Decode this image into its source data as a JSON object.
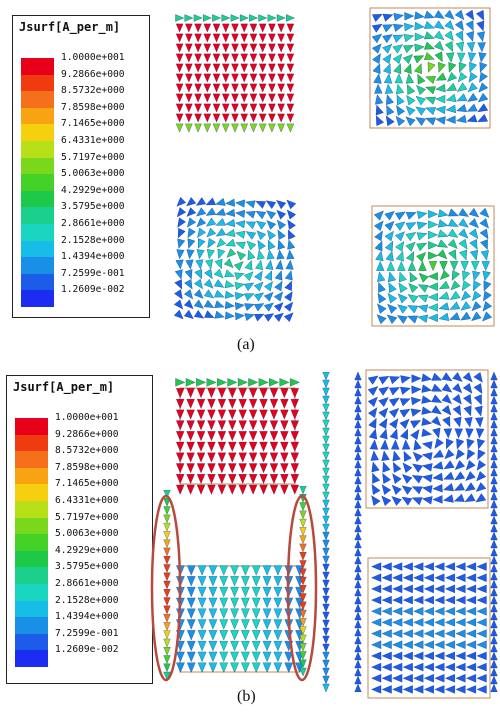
{
  "legend_a": {
    "title": "Jsurf[A_per_m]",
    "ticks": [
      "1.0000e+001",
      "9.2866e+000",
      "8.5732e+000",
      "7.8598e+000",
      "7.1465e+000",
      "6.4331e+000",
      "5.7197e+000",
      "5.0063e+000",
      "4.2929e+000",
      "3.5795e+000",
      "2.8661e+000",
      "2.1528e+000",
      "1.4394e+000",
      "7.2599e-001",
      "1.2609e-002"
    ]
  },
  "legend_b": {
    "title": "Jsurf[A_per_m]",
    "ticks": [
      "1.0000e+001",
      "9.2866e+000",
      "8.5732e+000",
      "7.8598e+000",
      "7.1465e+000",
      "6.4331e+000",
      "5.7197e+000",
      "5.0063e+000",
      "4.2929e+000",
      "3.5795e+000",
      "2.8661e+000",
      "2.1528e+000",
      "1.4394e+000",
      "7.2599e-001",
      "1.2609e-002"
    ]
  },
  "colormap": [
    "#e8001a",
    "#f03a10",
    "#f5701a",
    "#f8a412",
    "#f6d00f",
    "#b8e018",
    "#7ad81c",
    "#44d226",
    "#1ec94a",
    "#1ad08c",
    "#18d6c0",
    "#17bde6",
    "#1a8fe8",
    "#1c5ce8",
    "#1c2cf0"
  ],
  "captions": {
    "a": "(a)",
    "b": "(b)"
  },
  "highlight_color": "#b84a3c"
}
